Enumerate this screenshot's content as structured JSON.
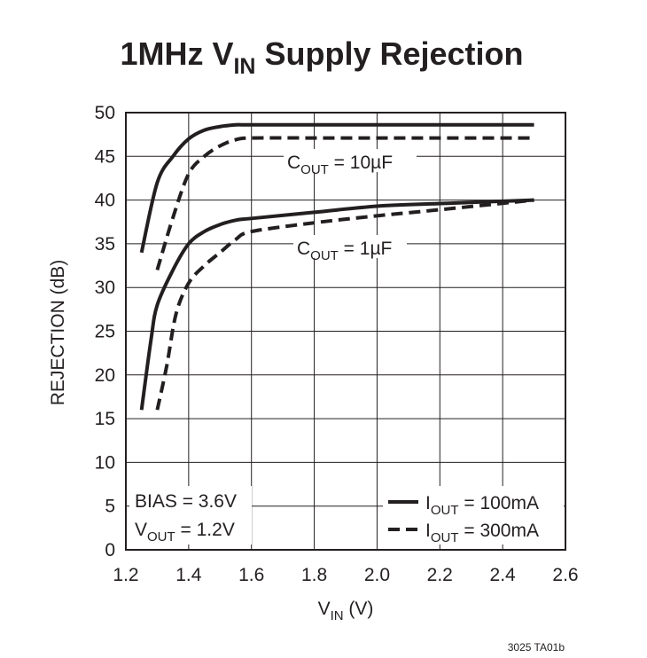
{
  "chart_data": {
    "type": "line",
    "title": {
      "main": "1MHz V",
      "sub": "IN",
      "rest": " Supply Rejection"
    },
    "xlabel": {
      "main": "V",
      "sub": "IN",
      "rest": " (V)"
    },
    "ylabel": "REJECTION (dB)",
    "xlim": [
      1.2,
      2.6
    ],
    "ylim": [
      0,
      50
    ],
    "xticks": [
      "1.2",
      "1.4",
      "1.6",
      "1.8",
      "2.0",
      "2.2",
      "2.4",
      "2.6"
    ],
    "yticks": [
      "0",
      "5",
      "10",
      "15",
      "20",
      "25",
      "30",
      "35",
      "40",
      "45",
      "50"
    ],
    "grid": true,
    "series": [
      {
        "name": "I_OUT = 100mA, C_OUT = 10µF",
        "style": "solid",
        "x": [
          1.25,
          1.3,
          1.35,
          1.4,
          1.45,
          1.5,
          1.55,
          1.6,
          1.8,
          2.0,
          2.2,
          2.5
        ],
        "y": [
          34,
          42,
          45,
          47,
          48,
          48.4,
          48.6,
          48.6,
          48.6,
          48.6,
          48.6,
          48.6
        ]
      },
      {
        "name": "I_OUT = 300mA, C_OUT = 10µF",
        "style": "dashed",
        "x": [
          1.3,
          1.35,
          1.4,
          1.45,
          1.5,
          1.55,
          1.6,
          1.8,
          2.0,
          2.2,
          2.5
        ],
        "y": [
          32,
          38,
          43,
          45,
          46.2,
          46.9,
          47.1,
          47.1,
          47.1,
          47.1,
          47.1
        ]
      },
      {
        "name": "I_OUT = 100mA, C_OUT = 1µF",
        "style": "solid",
        "x": [
          1.25,
          1.28,
          1.3,
          1.35,
          1.4,
          1.45,
          1.5,
          1.55,
          1.6,
          1.8,
          2.0,
          2.2,
          2.5
        ],
        "y": [
          16,
          24,
          28,
          32,
          35,
          36.4,
          37.2,
          37.7,
          37.9,
          38.6,
          39.3,
          39.6,
          40
        ]
      },
      {
        "name": "I_OUT = 300mA, C_OUT = 1µF",
        "style": "dashed",
        "x": [
          1.3,
          1.33,
          1.36,
          1.4,
          1.45,
          1.5,
          1.55,
          1.6,
          1.8,
          2.0,
          2.2,
          2.5
        ],
        "y": [
          16,
          21,
          27,
          30.5,
          32.5,
          34,
          35.5,
          36.4,
          37.4,
          38.2,
          38.9,
          40
        ]
      }
    ],
    "annotations": {
      "cout_10uf": {
        "main": "C",
        "sub": "OUT",
        "rest": " = 10µF"
      },
      "cout_1uf": {
        "main": "C",
        "sub": "OUT",
        "rest": " = 1µF"
      },
      "bias": "BIAS = 3.6V",
      "vout": {
        "main": "V",
        "sub": "OUT",
        "rest": " = 1.2V"
      }
    },
    "legend": {
      "placement": "bottom-right",
      "items": [
        {
          "main": "I",
          "sub": "OUT",
          "rest": " = 100mA",
          "style": "solid"
        },
        {
          "main": "I",
          "sub": "OUT",
          "rest": " = 300mA",
          "style": "dashed"
        }
      ]
    },
    "footnote": "3025 TA01b",
    "colors": {
      "ink": "#231f20",
      "background": "#ffffff"
    }
  }
}
